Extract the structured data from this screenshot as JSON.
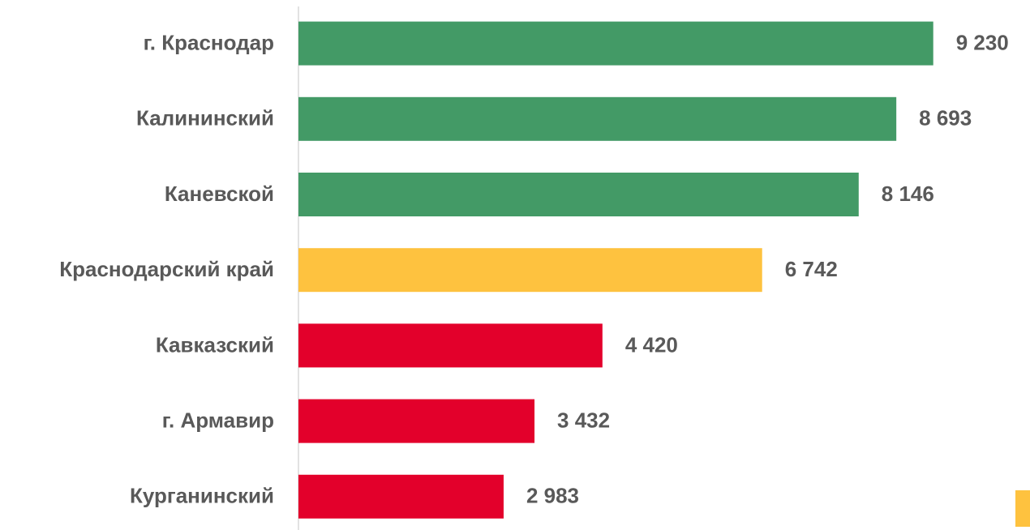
{
  "chart_data": {
    "type": "bar",
    "orientation": "horizontal",
    "categories": [
      "г. Краснодар",
      "Калининский",
      "Каневской",
      "Краснодарский край",
      "Кавказский",
      "г. Армавир",
      "Курганинский"
    ],
    "values": [
      9230,
      8693,
      8146,
      6742,
      4420,
      3432,
      2983
    ],
    "value_labels": [
      "9 230",
      "8 693",
      "8 146",
      "6 742",
      "4 420",
      "3 432",
      "2 983"
    ],
    "colors": [
      "#439a66",
      "#439a66",
      "#439a66",
      "#fec23f",
      "#e3002b",
      "#e3002b",
      "#e3002b"
    ],
    "xlim": [
      0,
      10000
    ]
  }
}
